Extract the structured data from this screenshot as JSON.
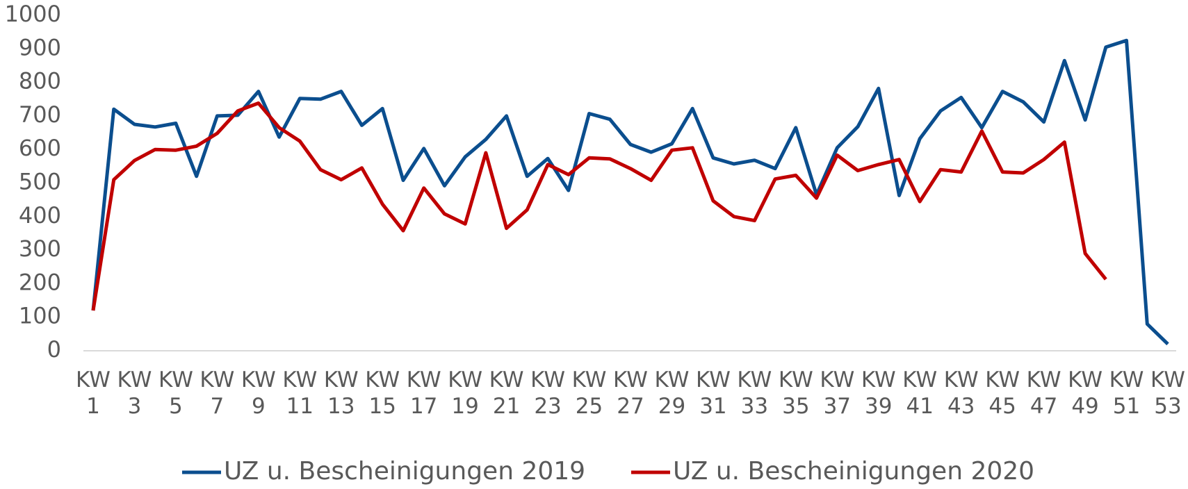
{
  "chart_data": {
    "type": "line",
    "categories": [
      "KW 1",
      null,
      "KW 3",
      null,
      "KW 5",
      null,
      "KW 7",
      null,
      "KW 9",
      null,
      "KW 11",
      null,
      "KW 13",
      null,
      "KW 15",
      null,
      "KW 17",
      null,
      "KW 19",
      null,
      "KW 21",
      null,
      "KW 23",
      null,
      "KW 25",
      null,
      "KW 27",
      null,
      "KW 29",
      null,
      "KW 31",
      null,
      "KW 33",
      null,
      "KW 35",
      null,
      "KW 37",
      null,
      "KW 39",
      null,
      "KW 41",
      null,
      "KW 43",
      null,
      "KW 45",
      null,
      "KW 47",
      null,
      "KW 49",
      null,
      "KW 51",
      null,
      "KW 53"
    ],
    "series": [
      {
        "name": "UZ u. Bescheinigungen 2019",
        "color": "#0b4e8e",
        "values": [
          120,
          720,
          675,
          667,
          678,
          520,
          700,
          702,
          773,
          637,
          752,
          750,
          773,
          672,
          722,
          508,
          603,
          492,
          578,
          630,
          700,
          520,
          573,
          478,
          707,
          690,
          615,
          592,
          617,
          722,
          575,
          557,
          568,
          543,
          665,
          465,
          605,
          668,
          782,
          463,
          632,
          715,
          755,
          665,
          773,
          742,
          682,
          865,
          688,
          905,
          925,
          80,
          20
        ]
      },
      {
        "name": "UZ u. Bescheinigungen 2020",
        "color": "#c00000",
        "values": [
          120,
          510,
          567,
          600,
          598,
          610,
          648,
          715,
          738,
          665,
          625,
          540,
          510,
          545,
          437,
          358,
          485,
          408,
          378,
          590,
          365,
          420,
          555,
          525,
          575,
          572,
          543,
          508,
          598,
          605,
          447,
          400,
          388,
          512,
          523,
          455,
          583,
          537,
          555,
          570,
          445,
          540,
          533,
          655,
          533,
          530,
          570,
          622,
          290,
          213,
          null,
          null,
          null
        ]
      }
    ],
    "ylim": [
      0,
      1000
    ],
    "yticks": [
      0,
      100,
      200,
      300,
      400,
      500,
      600,
      700,
      800,
      900,
      1000
    ],
    "grid": false,
    "legend": "bottom"
  }
}
